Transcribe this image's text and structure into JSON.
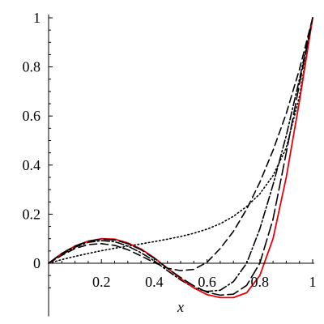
{
  "chart_data": {
    "type": "line",
    "title": "",
    "xlabel": "x",
    "ylabel": "",
    "xlim": [
      0,
      1
    ],
    "ylim": [
      -0.15,
      1
    ],
    "x_ticks": [
      0.2,
      0.4,
      0.6,
      0.8,
      1
    ],
    "x_tick_labels": [
      "0.2",
      "0.4",
      "0.6",
      "0.8",
      "1"
    ],
    "y_ticks": [
      0,
      0.2,
      0.4,
      0.6,
      0.8,
      1
    ],
    "y_tick_labels": [
      "0",
      "0.2",
      "0.4",
      "0.6",
      "0.8",
      "1"
    ],
    "grid": false,
    "legend": "none",
    "series": [
      {
        "style": "dotted",
        "color": "#000000",
        "x": [
          0,
          0.05,
          0.1,
          0.15,
          0.2,
          0.25,
          0.3,
          0.35,
          0.4,
          0.45,
          0.5,
          0.55,
          0.6,
          0.65,
          0.7,
          0.75,
          0.8,
          0.85,
          0.9,
          0.95,
          1
        ],
        "values": [
          0,
          0.015,
          0.028,
          0.04,
          0.051,
          0.061,
          0.07,
          0.079,
          0.088,
          0.098,
          0.109,
          0.122,
          0.139,
          0.161,
          0.191,
          0.231,
          0.283,
          0.357,
          0.47,
          0.68,
          1
        ]
      },
      {
        "style": "dashed",
        "color": "#000000",
        "x": [
          0,
          0.05,
          0.1,
          0.15,
          0.2,
          0.25,
          0.3,
          0.35,
          0.4,
          0.45,
          0.5,
          0.55,
          0.6,
          0.65,
          0.7,
          0.75,
          0.8,
          0.85,
          0.9,
          0.95,
          1
        ],
        "values": [
          0,
          0.032,
          0.06,
          0.076,
          0.08,
          0.073,
          0.055,
          0.03,
          0.003,
          -0.02,
          -0.03,
          -0.025,
          0.004,
          0.06,
          0.13,
          0.22,
          0.33,
          0.46,
          0.61,
          0.79,
          1
        ]
      },
      {
        "style": "dash-dot",
        "color": "#000000",
        "x": [
          0,
          0.05,
          0.1,
          0.15,
          0.2,
          0.25,
          0.3,
          0.35,
          0.4,
          0.45,
          0.5,
          0.55,
          0.6,
          0.65,
          0.7,
          0.75,
          0.8,
          0.85,
          0.9,
          0.95,
          1
        ],
        "values": [
          0,
          0.035,
          0.065,
          0.085,
          0.092,
          0.088,
          0.07,
          0.043,
          0.01,
          -0.03,
          -0.068,
          -0.1,
          -0.115,
          -0.11,
          -0.075,
          0.0,
          0.14,
          0.32,
          0.52,
          0.75,
          1
        ]
      },
      {
        "style": "solid",
        "color": "#e8000b",
        "x": [
          0,
          0.05,
          0.1,
          0.15,
          0.2,
          0.25,
          0.3,
          0.35,
          0.4,
          0.45,
          0.5,
          0.55,
          0.6,
          0.65,
          0.7,
          0.75,
          0.8,
          0.85,
          0.9,
          0.95,
          1
        ],
        "values": [
          0,
          0.04,
          0.07,
          0.09,
          0.1,
          0.098,
          0.083,
          0.058,
          0.022,
          -0.02,
          -0.062,
          -0.1,
          -0.128,
          -0.14,
          -0.14,
          -0.12,
          -0.05,
          0.1,
          0.35,
          0.66,
          1
        ]
      },
      {
        "style": "long-dash",
        "color": "#000000",
        "x": [
          0,
          0.05,
          0.1,
          0.15,
          0.2,
          0.25,
          0.3,
          0.35,
          0.4,
          0.45,
          0.5,
          0.55,
          0.6,
          0.65,
          0.7,
          0.75,
          0.8,
          0.85,
          0.9,
          0.95,
          1
        ],
        "values": [
          0,
          0.04,
          0.07,
          0.09,
          0.098,
          0.095,
          0.08,
          0.055,
          0.02,
          -0.02,
          -0.058,
          -0.092,
          -0.118,
          -0.13,
          -0.126,
          -0.09,
          0.0,
          0.18,
          0.45,
          0.73,
          1
        ]
      }
    ]
  }
}
